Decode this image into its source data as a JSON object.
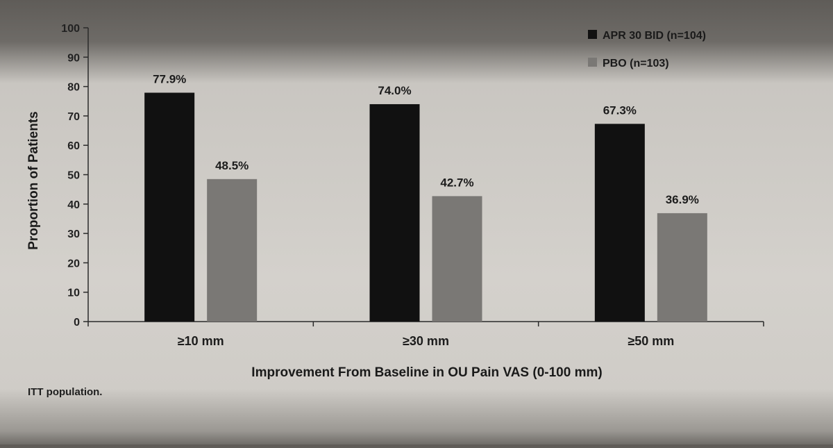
{
  "colors": {
    "series_apr": "#111111",
    "series_pbo": "#7a7875",
    "axis": "#2a2a2a"
  },
  "chart_data": {
    "type": "bar",
    "categories": [
      "≥10 mm",
      "≥30 mm",
      "≥50 mm"
    ],
    "series": [
      {
        "name": "APR 30 BID (n=104)",
        "values": [
          77.9,
          74.0,
          67.3
        ],
        "labels": [
          "77.9%",
          "74.0%",
          "67.3%"
        ]
      },
      {
        "name": "PBO (n=103)",
        "values": [
          48.5,
          42.7,
          36.9
        ],
        "labels": [
          "48.5%",
          "42.7%",
          "36.9%"
        ]
      }
    ],
    "ylabel": "Proportion of Patients",
    "xlabel": "Improvement From Baseline in OU Pain VAS (0-100 mm)",
    "ylim": [
      0,
      100
    ],
    "yticks": [
      "0",
      "10",
      "20",
      "30",
      "40",
      "50",
      "60",
      "70",
      "80",
      "90",
      "100"
    ],
    "legend_position": "top-right",
    "grid": false
  },
  "footnote": "ITT population."
}
